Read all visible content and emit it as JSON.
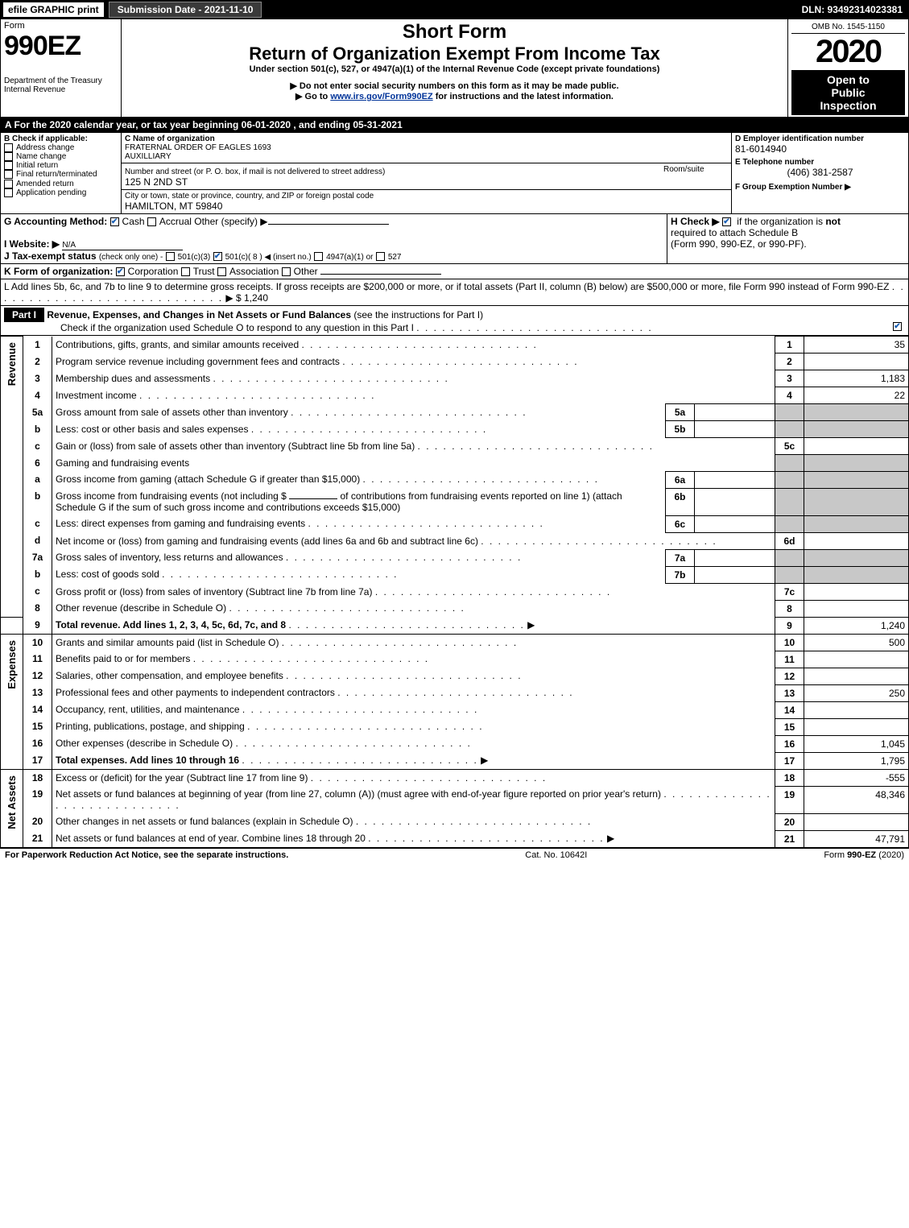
{
  "topbar": {
    "efile": "efile GRAPHIC print",
    "submission_label": "Submission Date - 2021-11-10",
    "dln": "DLN: 93492314023381"
  },
  "header": {
    "form_word": "Form",
    "form_number": "990EZ",
    "dept": "Department of the Treasury",
    "irs": "Internal Revenue",
    "short_form": "Short Form",
    "return_title": "Return of Organization Exempt From Income Tax",
    "under_section": "Under section 501(c), 527, or 4947(a)(1) of the Internal Revenue Code (except private foundations)",
    "ssn_notice": "▶ Do not enter social security numbers on this form as it may be made public.",
    "goto": "▶ Go to ",
    "goto_link": "www.irs.gov/Form990EZ",
    "goto_tail": " for instructions and the latest information.",
    "omb": "OMB No. 1545-1150",
    "year": "2020",
    "open1": "Open to",
    "open2": "Public",
    "open3": "Inspection"
  },
  "periodA": "A For the 2020 calendar year, or tax year beginning 06-01-2020 , and ending 05-31-2021",
  "boxB": {
    "label": "B  Check if applicable:",
    "opts": [
      "Address change",
      "Name change",
      "Initial return",
      "Final return/terminated",
      "Amended return",
      "Application pending"
    ]
  },
  "boxC": {
    "label": "C Name of organization",
    "name1": "FRATERNAL ORDER OF EAGLES 1693",
    "name2": "AUXILLIARY",
    "street_label": "Number and street (or P. O. box, if mail is not delivered to street address)",
    "room_label": "Room/suite",
    "street": "125 N 2ND ST",
    "city_label": "City or town, state or province, country, and ZIP or foreign postal code",
    "city": "HAMILTON, MT  59840"
  },
  "boxD": {
    "label": "D Employer identification number",
    "value": "81-6014940"
  },
  "boxE": {
    "label": "E Telephone number",
    "value": "(406) 381-2587"
  },
  "boxF": {
    "label": "F Group Exemption Number  ▶",
    "value": ""
  },
  "lineG": {
    "label": "G Accounting Method:",
    "cash": "Cash",
    "accrual": "Accrual",
    "other": "Other (specify) ▶"
  },
  "lineH": {
    "label": "H  Check ▶",
    "tail1": " if the organization is ",
    "not": "not",
    "tail2": " required to attach Schedule B",
    "tail3": "(Form 990, 990-EZ, or 990-PF)."
  },
  "lineI": {
    "label": "I Website: ▶",
    "value": "N/A"
  },
  "lineJ": {
    "label": "J Tax-exempt status",
    "small": "(check only one) -",
    "o1": "501(c)(3)",
    "o2": "501(c)( 8 ) ◀ (insert no.)",
    "o3": "4947(a)(1) or",
    "o4": "527"
  },
  "lineK": {
    "label": "K Form of organization:",
    "opts": [
      "Corporation",
      "Trust",
      "Association",
      "Other"
    ]
  },
  "lineL": {
    "text1": "L Add lines 5b, 6c, and 7b to line 9 to determine gross receipts. If gross receipts are $200,000 or more, or if total assets (Part II, column (B) below) are $500,000 or more, file Form 990 instead of Form 990-EZ",
    "arrow": "▶ $ ",
    "value": "1,240"
  },
  "part1": {
    "label": "Part I",
    "title": "Revenue, Expenses, and Changes in Net Assets or Fund Balances",
    "title_tail": " (see the instructions for Part I)",
    "check_line": "Check if the organization used Schedule O to respond to any question in this Part I"
  },
  "sections": {
    "revenue": "Revenue",
    "expenses": "Expenses",
    "netassets": "Net Assets"
  },
  "lines": {
    "l1": {
      "n": "1",
      "t": "Contributions, gifts, grants, and similar amounts received",
      "r": "1",
      "v": "35"
    },
    "l2": {
      "n": "2",
      "t": "Program service revenue including government fees and contracts",
      "r": "2",
      "v": ""
    },
    "l3": {
      "n": "3",
      "t": "Membership dues and assessments",
      "r": "3",
      "v": "1,183"
    },
    "l4": {
      "n": "4",
      "t": "Investment income",
      "r": "4",
      "v": "22"
    },
    "l5a": {
      "n": "5a",
      "t": "Gross amount from sale of assets other than inventory",
      "sr": "5a"
    },
    "l5b": {
      "n": "b",
      "t": "Less: cost or other basis and sales expenses",
      "sr": "5b"
    },
    "l5c": {
      "n": "c",
      "t": "Gain or (loss) from sale of assets other than inventory (Subtract line 5b from line 5a)",
      "r": "5c",
      "v": ""
    },
    "l6": {
      "n": "6",
      "t": "Gaming and fundraising events"
    },
    "l6a": {
      "n": "a",
      "t": "Gross income from gaming (attach Schedule G if greater than $15,000)",
      "sr": "6a"
    },
    "l6b": {
      "n": "b",
      "t1": "Gross income from fundraising events (not including $",
      "t2": "of contributions from fundraising events reported on line 1) (attach Schedule G if the sum of such gross income and contributions exceeds $15,000)",
      "sr": "6b"
    },
    "l6c": {
      "n": "c",
      "t": "Less: direct expenses from gaming and fundraising events",
      "sr": "6c"
    },
    "l6d": {
      "n": "d",
      "t": "Net income or (loss) from gaming and fundraising events (add lines 6a and 6b and subtract line 6c)",
      "r": "6d",
      "v": ""
    },
    "l7a": {
      "n": "7a",
      "t": "Gross sales of inventory, less returns and allowances",
      "sr": "7a"
    },
    "l7b": {
      "n": "b",
      "t": "Less: cost of goods sold",
      "sr": "7b"
    },
    "l7c": {
      "n": "c",
      "t": "Gross profit or (loss) from sales of inventory (Subtract line 7b from line 7a)",
      "r": "7c",
      "v": ""
    },
    "l8": {
      "n": "8",
      "t": "Other revenue (describe in Schedule O)",
      "r": "8",
      "v": ""
    },
    "l9": {
      "n": "9",
      "t": "Total revenue. Add lines 1, 2, 3, 4, 5c, 6d, 7c, and 8",
      "r": "9",
      "v": "1,240",
      "bold": true,
      "arrow": true
    },
    "l10": {
      "n": "10",
      "t": "Grants and similar amounts paid (list in Schedule O)",
      "r": "10",
      "v": "500"
    },
    "l11": {
      "n": "11",
      "t": "Benefits paid to or for members",
      "r": "11",
      "v": ""
    },
    "l12": {
      "n": "12",
      "t": "Salaries, other compensation, and employee benefits",
      "r": "12",
      "v": ""
    },
    "l13": {
      "n": "13",
      "t": "Professional fees and other payments to independent contractors",
      "r": "13",
      "v": "250"
    },
    "l14": {
      "n": "14",
      "t": "Occupancy, rent, utilities, and maintenance",
      "r": "14",
      "v": ""
    },
    "l15": {
      "n": "15",
      "t": "Printing, publications, postage, and shipping",
      "r": "15",
      "v": ""
    },
    "l16": {
      "n": "16",
      "t": "Other expenses (describe in Schedule O)",
      "r": "16",
      "v": "1,045"
    },
    "l17": {
      "n": "17",
      "t": "Total expenses. Add lines 10 through 16",
      "r": "17",
      "v": "1,795",
      "bold": true,
      "arrow": true
    },
    "l18": {
      "n": "18",
      "t": "Excess or (deficit) for the year (Subtract line 17 from line 9)",
      "r": "18",
      "v": "-555"
    },
    "l19": {
      "n": "19",
      "t": "Net assets or fund balances at beginning of year (from line 27, column (A)) (must agree with end-of-year figure reported on prior year's return)",
      "r": "19",
      "v": "48,346"
    },
    "l20": {
      "n": "20",
      "t": "Other changes in net assets or fund balances (explain in Schedule O)",
      "r": "20",
      "v": ""
    },
    "l21": {
      "n": "21",
      "t": "Net assets or fund balances at end of year. Combine lines 18 through 20",
      "r": "21",
      "v": "47,791",
      "arrow": true
    }
  },
  "footer": {
    "left": "For Paperwork Reduction Act Notice, see the separate instructions.",
    "mid": "Cat. No. 10642I",
    "right_pre": "Form ",
    "right_form": "990-EZ",
    "right_post": " (2020)"
  }
}
